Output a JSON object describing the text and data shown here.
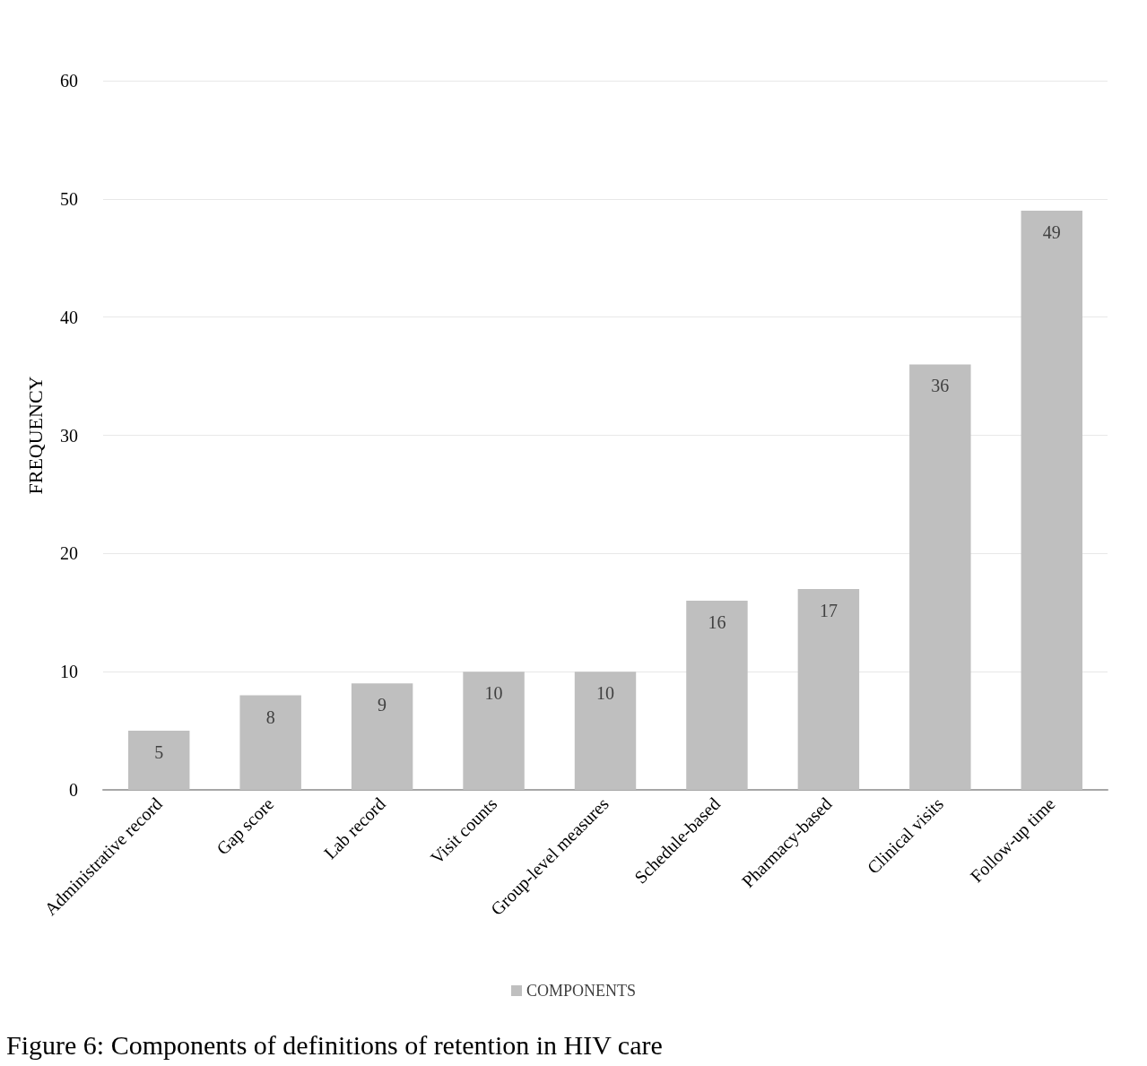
{
  "chart_data": {
    "type": "bar",
    "title": "Figure 6: Components of definitions of retention in HIV care",
    "ylabel": "FREQUENCY",
    "categories": [
      "Administrative record",
      "Gap score",
      "Lab record",
      "Visit counts",
      "Group-level measures",
      "Schedule-based",
      "Pharmacy-based",
      "Clinical visits",
      "Follow-up time"
    ],
    "series": [
      {
        "name": "COMPONENTS",
        "color": "#bfbfbf",
        "values": [
          5,
          8,
          9,
          10,
          10,
          16,
          17,
          36,
          49
        ]
      }
    ],
    "ylim": [
      0,
      60
    ],
    "yticks": [
      0,
      10,
      20,
      30,
      40,
      50,
      60
    ],
    "grid": "y",
    "legend": "bottom",
    "data_labels": true
  }
}
